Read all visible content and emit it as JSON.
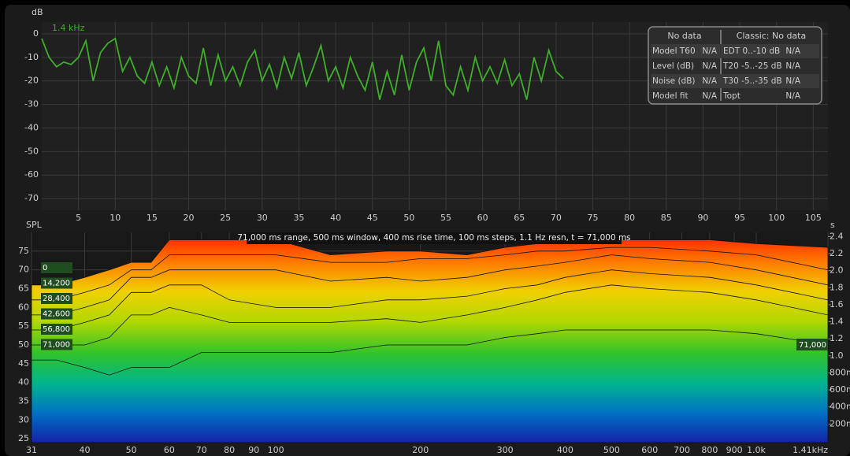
{
  "chart_data": [
    {
      "type": "line",
      "y_label": "dB",
      "x": [
        0,
        1,
        2,
        3,
        4,
        5,
        6,
        7,
        8,
        9,
        10,
        11,
        12,
        13,
        14,
        15,
        16,
        17,
        18,
        19,
        20,
        21,
        22,
        23,
        24,
        25,
        26,
        27,
        28,
        29,
        30,
        31,
        32,
        33,
        34,
        35,
        36,
        37,
        38,
        39,
        40,
        41,
        42,
        43,
        44,
        45,
        46,
        47,
        48,
        49,
        50,
        51,
        52,
        53,
        54,
        55,
        56,
        57,
        58,
        59,
        60,
        61,
        62,
        63,
        64,
        65,
        66,
        67,
        68,
        69,
        70,
        71
      ],
      "series": [
        {
          "name": "1.4 kHz",
          "color": "#3fae2a",
          "values": [
            -2,
            -10,
            -14,
            -12,
            -13,
            -10,
            -3,
            -20,
            -8,
            -4,
            -2,
            -16,
            -10,
            -18,
            -21,
            -12,
            -22,
            -14,
            -23,
            -10,
            -18,
            -21,
            -6,
            -22,
            -9,
            -20,
            -14,
            -22,
            -12,
            -7,
            -20,
            -13,
            -23,
            -10,
            -19,
            -8,
            -22,
            -14,
            -5,
            -20,
            -14,
            -23,
            -10,
            -18,
            -24,
            -12,
            -28,
            -16,
            -26,
            -9,
            -24,
            -12,
            -6,
            -20,
            -3,
            -22,
            -26,
            -14,
            -24,
            -10,
            -20,
            -14,
            -21,
            -11,
            -22,
            -17,
            -28,
            -10,
            -20,
            -7,
            -16,
            -19
          ]
        }
      ],
      "xlim": [
        0,
        107
      ],
      "xticks": [
        5,
        10,
        15,
        20,
        25,
        30,
        35,
        40,
        45,
        50,
        55,
        60,
        65,
        70,
        75,
        80,
        85,
        90,
        95,
        100,
        105
      ],
      "ylim": [
        -75,
        5
      ],
      "yticks": [
        0,
        -10,
        -20,
        -30,
        -40,
        -50,
        -60,
        -70
      ],
      "grid": true
    },
    {
      "type": "waterfall",
      "title": "71,000 ms range, 500 ms window, 400 ms rise time, 100 ms steps,  1.1 Hz resn, t = 71,000 ms",
      "y_label": "SPL",
      "y2_label": "s",
      "log_x": true,
      "x": [
        31,
        35,
        40,
        45,
        50,
        55,
        60,
        70,
        80,
        100,
        130,
        170,
        200,
        250,
        300,
        350,
        400,
        500,
        600,
        800,
        1000,
        1410
      ],
      "series": [
        {
          "name": "0",
          "values": [
            66,
            66,
            68,
            70,
            72,
            72,
            78,
            78,
            78,
            78,
            74,
            75,
            75,
            74,
            76,
            77,
            78,
            78,
            78,
            78,
            77,
            76
          ]
        },
        {
          "name": "14,200",
          "values": [
            62,
            62,
            64,
            66,
            70,
            70,
            74,
            74,
            74,
            74,
            72,
            72,
            73,
            73,
            74,
            75,
            75,
            76,
            76,
            75,
            74,
            70
          ]
        },
        {
          "name": "28,400",
          "values": [
            58,
            58,
            60,
            62,
            68,
            68,
            70,
            70,
            70,
            70,
            67,
            68,
            67,
            68,
            70,
            71,
            72,
            74,
            73,
            72,
            70,
            66
          ]
        },
        {
          "name": "42,600",
          "values": [
            54,
            54,
            56,
            58,
            64,
            64,
            66,
            66,
            62,
            60,
            60,
            62,
            62,
            63,
            65,
            66,
            68,
            70,
            69,
            68,
            66,
            62
          ]
        },
        {
          "name": "56,800",
          "values": [
            50,
            50,
            50,
            52,
            58,
            58,
            60,
            58,
            56,
            56,
            56,
            57,
            56,
            58,
            60,
            62,
            64,
            66,
            65,
            64,
            62,
            58
          ]
        },
        {
          "name": "71,000",
          "values": [
            46,
            46,
            44,
            42,
            44,
            44,
            44,
            48,
            48,
            48,
            48,
            50,
            50,
            50,
            52,
            53,
            54,
            54,
            54,
            54,
            53,
            50
          ]
        }
      ],
      "xlim": [
        31,
        1410
      ],
      "xticks": [
        31,
        40,
        50,
        60,
        70,
        80,
        90,
        100,
        200,
        300,
        400,
        500,
        600,
        700,
        800,
        900,
        {
          "value": 1000,
          "label": "1.0k"
        },
        {
          "value": 1410,
          "label": "1.41kHz"
        }
      ],
      "ylim": [
        24,
        80
      ],
      "yticks": [
        25,
        30,
        35,
        40,
        45,
        50,
        55,
        60,
        65,
        70,
        75
      ],
      "y2lim": [
        0,
        2.45
      ],
      "y2ticks": [
        {
          "value": 0.2,
          "label": "200m"
        },
        {
          "value": 0.4,
          "label": "400m"
        },
        {
          "value": 0.6,
          "label": "600m"
        },
        {
          "value": 0.8,
          "label": "800m"
        },
        {
          "value": 1,
          "label": "1.0"
        },
        1.2,
        1.4,
        1.6,
        1.8,
        {
          "value": 2,
          "label": "2.0"
        },
        2.2,
        2.4
      ],
      "grid": true
    }
  ],
  "info_table": {
    "header": [
      "No data",
      "Classic: No data"
    ],
    "rows": [
      [
        "Model T60",
        "N/A",
        "EDT  0..-10 dB",
        "N/A"
      ],
      [
        "Level (dB)",
        "N/A",
        "T20 -5..-25 dB",
        "N/A"
      ],
      [
        "Noise (dB)",
        "N/A",
        "T30 -5..-35 dB",
        "N/A"
      ],
      [
        "Model fit",
        "N/A",
        "Topt",
        "N/A"
      ]
    ]
  }
}
